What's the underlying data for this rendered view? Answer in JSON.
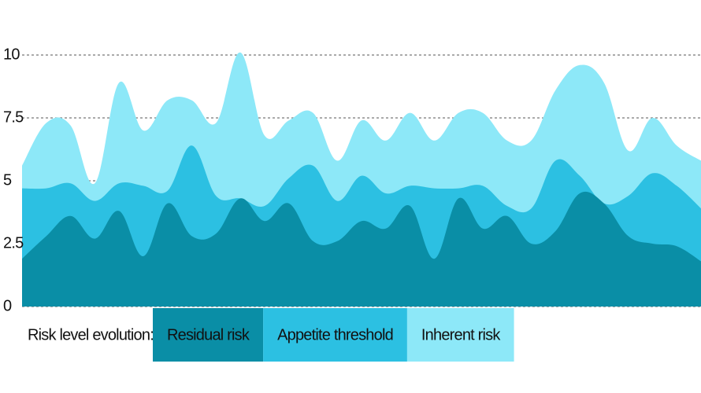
{
  "chart_data": {
    "type": "area",
    "categories": [
      null,
      null,
      null,
      null,
      null,
      null,
      null,
      null,
      null,
      null,
      null,
      null,
      null,
      null,
      null,
      null,
      null,
      null,
      null,
      null,
      null,
      null,
      null,
      null,
      null,
      null,
      null,
      null,
      null
    ],
    "series": [
      {
        "name": "Inherent risk",
        "color": "#8de8f8",
        "values": [
          5.6,
          7.3,
          7.2,
          4.9,
          8.9,
          7.0,
          8.2,
          8.2,
          7.3,
          10.1,
          6.8,
          7.4,
          7.7,
          5.8,
          7.4,
          6.6,
          7.7,
          6.6,
          7.7,
          7.7,
          6.6,
          6.6,
          8.6,
          9.6,
          8.9,
          6.2,
          7.5,
          6.4,
          5.8
        ]
      },
      {
        "name": "Appetite threshold",
        "color": "#2cc0e2",
        "values": [
          4.7,
          4.7,
          4.9,
          4.2,
          4.9,
          4.8,
          4.6,
          6.4,
          4.4,
          4.3,
          4.0,
          5.1,
          5.6,
          4.2,
          5.2,
          4.5,
          4.8,
          4.7,
          4.7,
          4.8,
          4.0,
          3.9,
          5.8,
          5.2,
          4.1,
          4.4,
          5.3,
          4.8,
          3.9
        ]
      },
      {
        "name": "Residual risk",
        "color": "#0a8ea6",
        "values": [
          1.9,
          2.8,
          3.6,
          2.7,
          3.8,
          2.0,
          4.1,
          2.8,
          2.9,
          4.3,
          3.4,
          4.1,
          2.6,
          2.6,
          3.4,
          3.1,
          4.0,
          1.9,
          4.3,
          3.1,
          3.6,
          2.5,
          3.0,
          4.5,
          4.1,
          2.8,
          2.5,
          2.4,
          1.8
        ]
      }
    ],
    "legend_title": "Risk level evolution:",
    "legend_order": [
      2,
      1,
      0
    ],
    "ylim": [
      0,
      10
    ],
    "yticks": [
      0,
      2.5,
      5,
      7.5,
      10
    ],
    "grid": true
  }
}
